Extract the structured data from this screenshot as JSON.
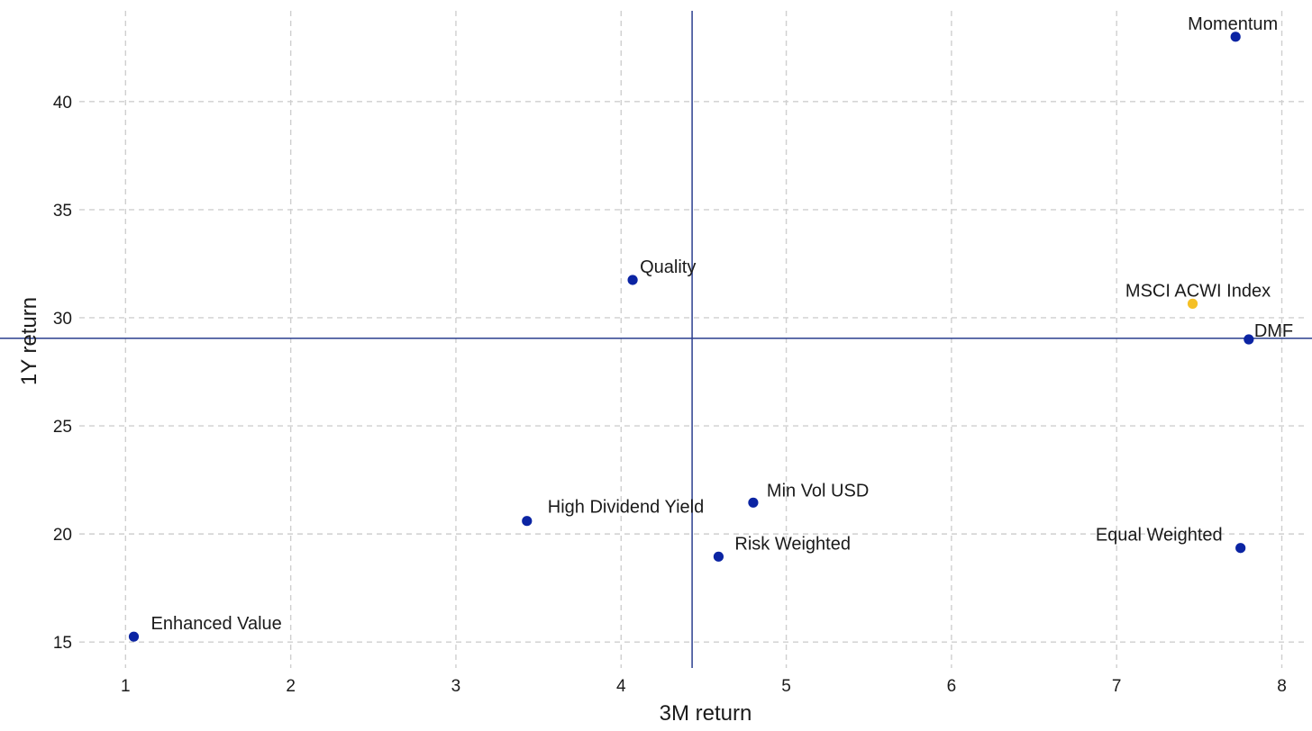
{
  "chart_data": {
    "type": "scatter",
    "title": "",
    "xlabel": "3M return",
    "ylabel": "1Y return",
    "xlim": [
      0.72,
      8.15
    ],
    "ylim": [
      13.8,
      44.2
    ],
    "xticks": [
      1,
      2,
      3,
      4,
      5,
      6,
      7,
      8
    ],
    "yticks": [
      15,
      20,
      25,
      30,
      35,
      40
    ],
    "grid": true,
    "reference_lines": {
      "vertical_x": 4.43,
      "horizontal_y": 29.05
    },
    "colors": {
      "factor": "#0b24a3",
      "benchmark": "#f5c026",
      "reference_line": "#2b3f8f"
    },
    "points": [
      {
        "label": "Momentum",
        "x": 7.72,
        "y": 43.0,
        "group": "factor"
      },
      {
        "label": "Quality",
        "x": 4.07,
        "y": 31.75,
        "group": "factor"
      },
      {
        "label": "MSCI ACWI Index",
        "x": 7.46,
        "y": 30.65,
        "group": "benchmark"
      },
      {
        "label": "DMF",
        "x": 7.8,
        "y": 29.0,
        "group": "factor"
      },
      {
        "label": "Min Vol USD",
        "x": 4.8,
        "y": 21.45,
        "group": "factor"
      },
      {
        "label": "High Dividend Yield",
        "x": 3.43,
        "y": 20.6,
        "group": "factor"
      },
      {
        "label": "Risk Weighted",
        "x": 4.59,
        "y": 18.95,
        "group": "factor"
      },
      {
        "label": "Equal Weighted",
        "x": 7.75,
        "y": 19.35,
        "group": "factor"
      },
      {
        "label": "Enhanced Value",
        "x": 1.05,
        "y": 15.25,
        "group": "factor"
      }
    ]
  }
}
